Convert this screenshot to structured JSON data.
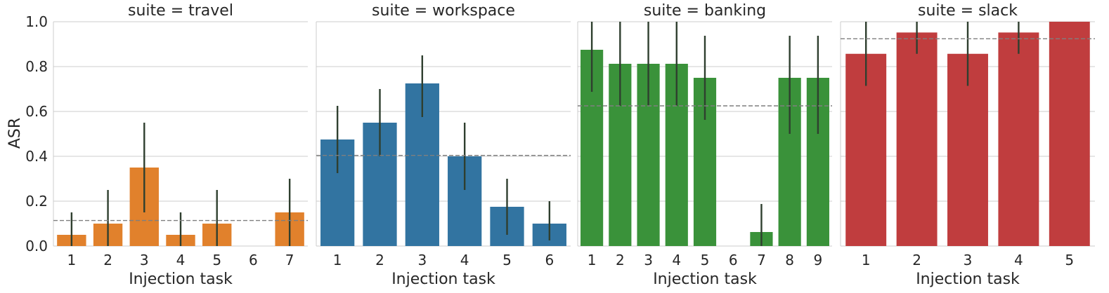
{
  "chart_data": {
    "type": "bar",
    "ylabel": "ASR",
    "ylim": [
      0,
      1
    ],
    "yticks": [
      "0.0",
      "0.2",
      "0.4",
      "0.6",
      "0.8",
      "1.0"
    ],
    "grid": true,
    "facets": [
      {
        "title": "suite = travel",
        "xlabel": "Injection task",
        "color": "#e1812c",
        "categories": [
          "1",
          "2",
          "3",
          "4",
          "5",
          "6",
          "7"
        ],
        "values": [
          0.05,
          0.1,
          0.35,
          0.05,
          0.1,
          0.0,
          0.15
        ],
        "err_low": [
          0.0,
          0.0,
          0.15,
          0.0,
          0.0,
          0.0,
          0.0
        ],
        "err_high": [
          0.15,
          0.25,
          0.55,
          0.15,
          0.25,
          0.0,
          0.3
        ],
        "mean": 0.114
      },
      {
        "title": "suite = workspace",
        "xlabel": "Injection task",
        "color": "#3274a1",
        "categories": [
          "1",
          "2",
          "3",
          "4",
          "5",
          "6"
        ],
        "values": [
          0.475,
          0.55,
          0.725,
          0.4,
          0.175,
          0.1
        ],
        "err_low": [
          0.325,
          0.4,
          0.575,
          0.25,
          0.05,
          0.025
        ],
        "err_high": [
          0.625,
          0.7,
          0.85,
          0.55,
          0.3,
          0.2
        ],
        "mean": 0.404
      },
      {
        "title": "suite = banking",
        "xlabel": "Injection task",
        "color": "#3a923a",
        "categories": [
          "1",
          "2",
          "3",
          "4",
          "5",
          "6",
          "7",
          "8",
          "9"
        ],
        "values": [
          0.875,
          0.8125,
          0.8125,
          0.8125,
          0.75,
          0.0,
          0.0625,
          0.75,
          0.75
        ],
        "err_low": [
          0.6875,
          0.625,
          0.625,
          0.625,
          0.5625,
          0.0,
          0.0,
          0.5,
          0.5
        ],
        "err_high": [
          1.0,
          1.0,
          1.0,
          1.0,
          0.9375,
          0.0,
          0.1875,
          0.9375,
          0.9375
        ],
        "mean": 0.625
      },
      {
        "title": "suite = slack",
        "xlabel": "Injection task",
        "color": "#c03d3e",
        "categories": [
          "1",
          "2",
          "3",
          "4",
          "5"
        ],
        "values": [
          0.857,
          0.952,
          0.857,
          0.952,
          1.0
        ],
        "err_low": [
          0.714,
          0.857,
          0.714,
          0.857,
          1.0
        ],
        "err_high": [
          1.0,
          1.0,
          1.0,
          1.0,
          1.0
        ],
        "mean": 0.924
      }
    ]
  }
}
